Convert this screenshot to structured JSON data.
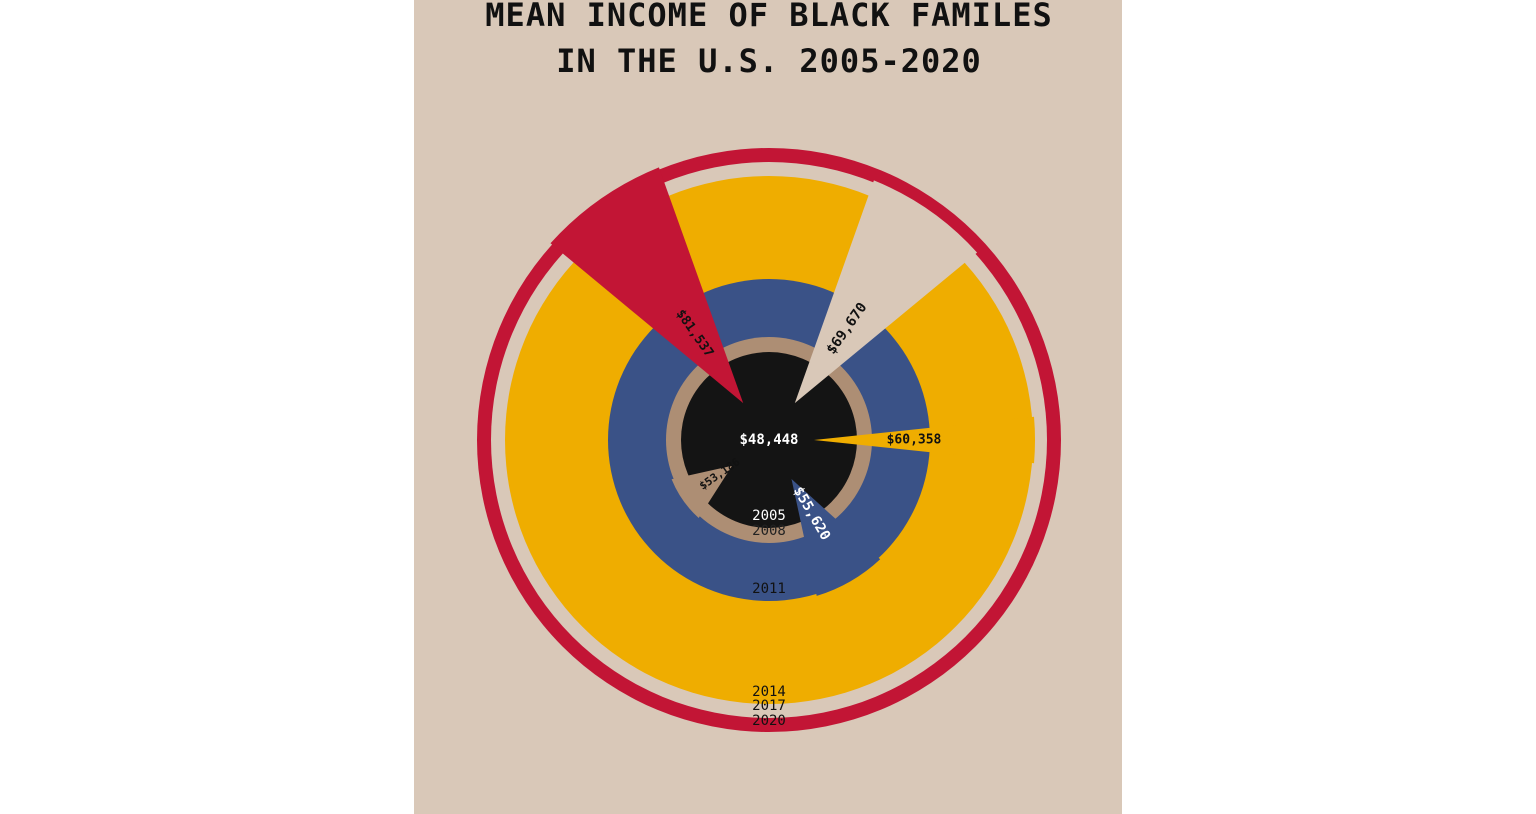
{
  "chart_data": {
    "type": "radial-bar",
    "title_lines": [
      "MEAN INCOME OF BLACK FAMILES",
      "IN THE U.S. 2005-2020"
    ],
    "series": [
      {
        "year": "2005",
        "value": 48448,
        "value_label": "$48,448",
        "color": "#141414",
        "label_color": "#ffffff",
        "year_color": "#ffffff"
      },
      {
        "year": "2008",
        "value": 53186,
        "value_label": "$53,186",
        "color": "#ad8e74",
        "label_color": "#111111",
        "year_color": "#222222"
      },
      {
        "year": "2011",
        "value": 55620,
        "value_label": "$55,620",
        "color": "#3a5287",
        "label_color": "#ffffff",
        "year_color": "#111111"
      },
      {
        "year": "2014",
        "value": 60358,
        "value_label": "$60,358",
        "color": "#efad00",
        "label_color": "#111111",
        "year_color": "#111111"
      },
      {
        "year": "2017",
        "value": 69670,
        "value_label": "$69,670",
        "color": "#d9c8b8",
        "label_color": "#111111",
        "year_color": "#111111"
      },
      {
        "year": "2020",
        "value": 81537,
        "value_label": "$81,537",
        "color": "#c21535",
        "label_color": "#111111",
        "year_color": "#111111"
      }
    ]
  }
}
